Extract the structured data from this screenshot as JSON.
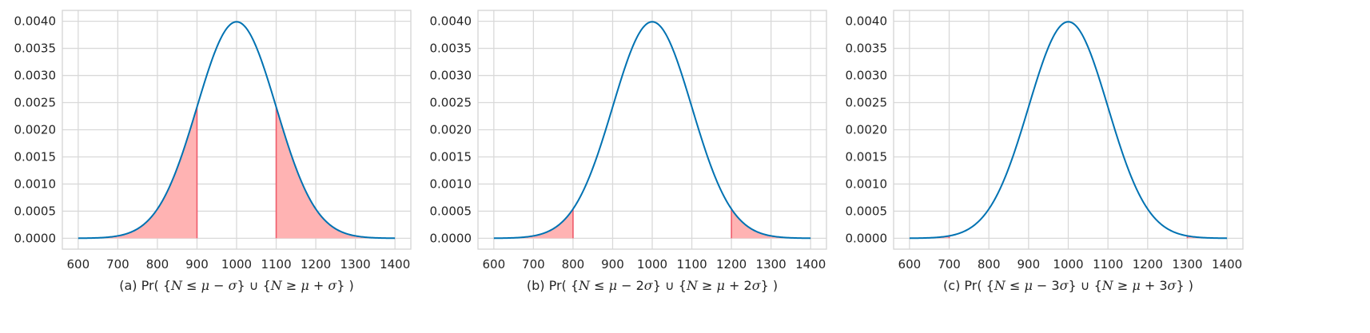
{
  "chart_data": [
    {
      "type": "line",
      "caption": {
        "prefix": "(a) Pr( {",
        "var1": "N",
        "rel1": " ≤ ",
        "mu1": "μ",
        "op1": " − ",
        "k1": "",
        "sigma1": "σ",
        "mid": "} ∪ {",
        "var2": "N",
        "rel2": " ≥ ",
        "mu2": "μ",
        "op2": " + ",
        "k2": "",
        "sigma2": "σ",
        "suffix": "} )"
      },
      "distribution": {
        "kind": "normal",
        "mean": 1000,
        "std": 100
      },
      "x_range": [
        600,
        1400
      ],
      "xlim": [
        560,
        1440
      ],
      "ylim": [
        -0.0002,
        0.0042
      ],
      "x_ticks": [
        "600",
        "700",
        "800",
        "900",
        "1000",
        "1100",
        "1200",
        "1300",
        "1400"
      ],
      "y_ticks": [
        "0.0000",
        "0.0005",
        "0.0010",
        "0.0015",
        "0.0020",
        "0.0025",
        "0.0030",
        "0.0035",
        "0.0040"
      ],
      "shaded_regions": [
        [
          600,
          900
        ],
        [
          1100,
          1400
        ]
      ],
      "grid": true
    },
    {
      "type": "line",
      "caption": {
        "prefix": "(b) Pr( {",
        "var1": "N",
        "rel1": " ≤ ",
        "mu1": "μ",
        "op1": " − ",
        "k1": "2",
        "sigma1": "σ",
        "mid": "} ∪ {",
        "var2": "N",
        "rel2": " ≥ ",
        "mu2": "μ",
        "op2": " + ",
        "k2": "2",
        "sigma2": "σ",
        "suffix": "} )"
      },
      "distribution": {
        "kind": "normal",
        "mean": 1000,
        "std": 100
      },
      "x_range": [
        600,
        1400
      ],
      "xlim": [
        560,
        1440
      ],
      "ylim": [
        -0.0002,
        0.0042
      ],
      "x_ticks": [
        "600",
        "700",
        "800",
        "900",
        "1000",
        "1100",
        "1200",
        "1300",
        "1400"
      ],
      "y_ticks": [
        "0.0000",
        "0.0005",
        "0.0010",
        "0.0015",
        "0.0020",
        "0.0025",
        "0.0030",
        "0.0035",
        "0.0040"
      ],
      "shaded_regions": [
        [
          600,
          800
        ],
        [
          1200,
          1400
        ]
      ],
      "grid": true
    },
    {
      "type": "line",
      "caption": {
        "prefix": "(c) Pr( {",
        "var1": "N",
        "rel1": " ≤ ",
        "mu1": "μ",
        "op1": " − ",
        "k1": "3",
        "sigma1": "σ",
        "mid": "} ∪ {",
        "var2": "N",
        "rel2": " ≥ ",
        "mu2": "μ",
        "op2": " + ",
        "k2": "3",
        "sigma2": "σ",
        "suffix": "} )"
      },
      "distribution": {
        "kind": "normal",
        "mean": 1000,
        "std": 100
      },
      "x_range": [
        600,
        1400
      ],
      "xlim": [
        560,
        1440
      ],
      "ylim": [
        -0.0002,
        0.0042
      ],
      "x_ticks": [
        "600",
        "700",
        "800",
        "900",
        "1000",
        "1100",
        "1200",
        "1300",
        "1400"
      ],
      "y_ticks": [
        "0.0000",
        "0.0005",
        "0.0010",
        "0.0015",
        "0.0020",
        "0.0025",
        "0.0030",
        "0.0035",
        "0.0040"
      ],
      "shaded_regions": [
        [
          600,
          700
        ],
        [
          1300,
          1400
        ]
      ],
      "grid": true
    }
  ],
  "colors": {
    "curve": "#0072b2",
    "shade_fill": "#ffb3b3",
    "shade_edge": "#ef5b6b",
    "grid": "#d9d9d9",
    "frame": "#d4d4d4",
    "text": "#262626"
  }
}
